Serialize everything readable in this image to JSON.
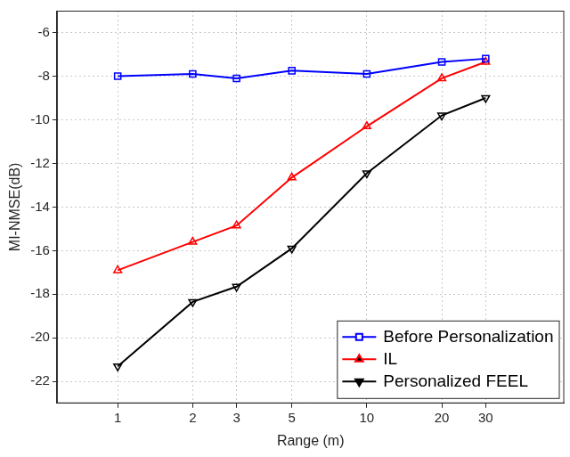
{
  "chart_data": {
    "type": "line",
    "x_label": "Range (m)",
    "y_label": "MI-NMSE(dB)",
    "x": [
      1,
      2,
      3,
      5,
      10,
      20,
      30
    ],
    "series": [
      {
        "name": "Before Personalization",
        "color": "#0000ff",
        "marker": "square",
        "line_style": "solid",
        "values": [
          -8.0,
          -7.9,
          -8.1,
          -7.75,
          -7.9,
          -7.35,
          -7.2
        ]
      },
      {
        "name": "IL",
        "color": "#ff0000",
        "marker": "triangle",
        "line_style": "solid",
        "values": [
          -16.9,
          -15.6,
          -14.85,
          -12.65,
          -10.3,
          -8.1,
          -7.35
        ]
      },
      {
        "name": "Personalized FEEL",
        "color": "#000000",
        "marker": "triangle-down",
        "line_style": "solid",
        "values": [
          -21.3,
          -18.35,
          -17.65,
          -15.9,
          -12.45,
          -9.8,
          -9.0
        ]
      }
    ],
    "log": "x",
    "xlim": [
      0.57,
      62
    ],
    "xticks": [
      1,
      2,
      3,
      5,
      10,
      20,
      30
    ],
    "ylim": [
      -23,
      -5
    ],
    "yticks": [
      -22,
      -20,
      -18,
      -16,
      -14,
      -12,
      -10,
      -8,
      -6
    ],
    "grid": true,
    "legend": "lower right"
  }
}
